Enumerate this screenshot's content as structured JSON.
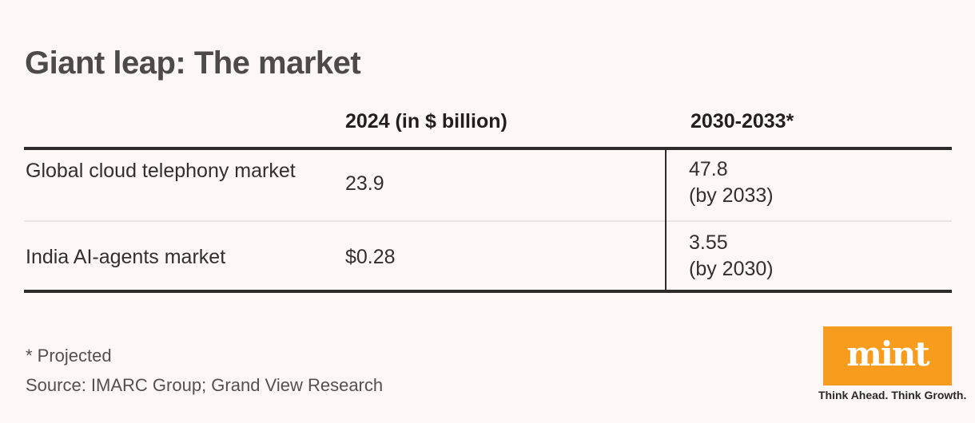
{
  "title": "Giant leap: The market",
  "table": {
    "columns": [
      "2024 (in $ billion)",
      "2030-2033*"
    ],
    "rows": [
      {
        "label": "Global cloud telephony market",
        "y2024": "23.9",
        "future_value": "47.8",
        "future_note": "(by 2033)"
      },
      {
        "label": "India AI-agents market",
        "y2024": "$0.28",
        "future_value": "3.55",
        "future_note": "(by 2030)"
      }
    ]
  },
  "footer": {
    "footnote": "* Projected",
    "source": "Source: IMARC Group; Grand View Research"
  },
  "logo": {
    "name": "mint",
    "tagline": "Think Ahead. Think Growth.",
    "brand_color": "#F79C1C"
  },
  "colors": {
    "background": "#FEF7F7",
    "rule": "#2E2B2C",
    "separator": "#EAE4E2",
    "title_text": "#4D4A4A",
    "body_text": "#332F30",
    "footer_text": "#54504F"
  },
  "chart_data": {
    "type": "table",
    "title": "Giant leap: The market",
    "columns": [
      "",
      "2024 (in $ billion)",
      "2030-2033*"
    ],
    "rows": [
      [
        "Global cloud telephony market",
        "23.9",
        "47.8 (by 2033)"
      ],
      [
        "India AI-agents market",
        "$0.28",
        "3.55 (by 2030)"
      ]
    ],
    "footnote": "* Projected",
    "source": "Source: IMARC Group; Grand View Research",
    "notes": "Values in $ billion; 2030-2033 column is projected"
  }
}
